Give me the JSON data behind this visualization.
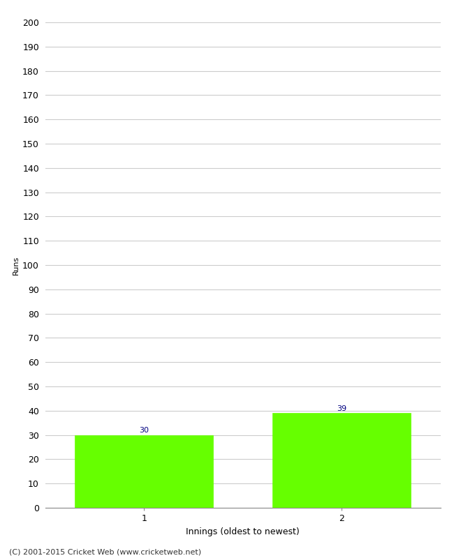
{
  "categories": [
    "1",
    "2"
  ],
  "values": [
    30,
    39
  ],
  "bar_color": "#66ff00",
  "bar_edge_color": "#66ff00",
  "title": "",
  "xlabel": "Innings (oldest to newest)",
  "ylabel": "Runs",
  "ylim": [
    0,
    200
  ],
  "yticks": [
    0,
    10,
    20,
    30,
    40,
    50,
    60,
    70,
    80,
    90,
    100,
    110,
    120,
    130,
    140,
    150,
    160,
    170,
    180,
    190,
    200
  ],
  "annotation_color": "#000080",
  "annotation_fontsize": 8,
  "xlabel_fontsize": 9,
  "ylabel_fontsize": 8,
  "tick_fontsize": 9,
  "footer_text": "(C) 2001-2015 Cricket Web (www.cricketweb.net)",
  "footer_fontsize": 8,
  "background_color": "#ffffff",
  "grid_color": "#cccccc"
}
